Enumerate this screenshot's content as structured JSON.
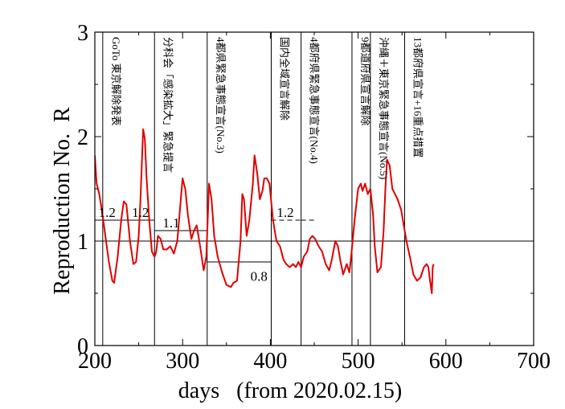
{
  "chart_data": {
    "type": "line",
    "title": "",
    "xlabel": "days   (from 2020.02.15)",
    "ylabel": "Reproduction No.  R",
    "xlim": [
      200,
      700
    ],
    "ylim": [
      0,
      3
    ],
    "x_ticks": [
      "200",
      "300",
      "400",
      "500",
      "600",
      "700"
    ],
    "y_ticks": [
      "0",
      "1",
      "2",
      "3"
    ],
    "x_tick_values": [
      200,
      300,
      400,
      500,
      600,
      700
    ],
    "y_tick_values": [
      0,
      1,
      2,
      3
    ],
    "grid": false,
    "series": [
      {
        "color": "#e00000",
        "points": [
          [
            200,
            1.82
          ],
          [
            202,
            1.55
          ],
          [
            205,
            1.45
          ],
          [
            208,
            1.3
          ],
          [
            212,
            1.05
          ],
          [
            216,
            0.8
          ],
          [
            220,
            0.62
          ],
          [
            222,
            0.6
          ],
          [
            226,
            0.85
          ],
          [
            230,
            1.2
          ],
          [
            233,
            1.38
          ],
          [
            236,
            1.35
          ],
          [
            240,
            1.0
          ],
          [
            244,
            0.78
          ],
          [
            247,
            0.8
          ],
          [
            250,
            1.05
          ],
          [
            252,
            1.4
          ],
          [
            254,
            1.85
          ],
          [
            255,
            2.07
          ],
          [
            257,
            1.98
          ],
          [
            259,
            1.6
          ],
          [
            262,
            1.2
          ],
          [
            265,
            0.9
          ],
          [
            268,
            0.85
          ],
          [
            270,
            0.9
          ],
          [
            272,
            1.05
          ],
          [
            275,
            1.02
          ],
          [
            278,
            0.92
          ],
          [
            282,
            0.92
          ],
          [
            286,
            0.95
          ],
          [
            290,
            0.88
          ],
          [
            294,
            1.0
          ],
          [
            297,
            1.3
          ],
          [
            300,
            1.6
          ],
          [
            303,
            1.5
          ],
          [
            306,
            1.25
          ],
          [
            310,
            1.02
          ],
          [
            313,
            1.1
          ],
          [
            316,
            1.15
          ],
          [
            320,
            0.95
          ],
          [
            324,
            0.72
          ],
          [
            327,
            0.85
          ],
          [
            329,
            1.3
          ],
          [
            330,
            1.55
          ],
          [
            333,
            1.4
          ],
          [
            336,
            1.05
          ],
          [
            340,
            0.85
          ],
          [
            345,
            0.7
          ],
          [
            350,
            0.58
          ],
          [
            355,
            0.56
          ],
          [
            358,
            0.6
          ],
          [
            362,
            0.62
          ],
          [
            366,
            1.0
          ],
          [
            368,
            1.45
          ],
          [
            370,
            1.4
          ],
          [
            373,
            1.05
          ],
          [
            376,
            1.2
          ],
          [
            380,
            1.55
          ],
          [
            382,
            1.82
          ],
          [
            385,
            1.65
          ],
          [
            388,
            1.4
          ],
          [
            391,
            1.48
          ],
          [
            393,
            1.6
          ],
          [
            396,
            1.6
          ],
          [
            399,
            1.55
          ],
          [
            403,
            1.2
          ],
          [
            407,
            1.0
          ],
          [
            411,
            0.95
          ],
          [
            415,
            0.82
          ],
          [
            418,
            0.78
          ],
          [
            422,
            0.75
          ],
          [
            426,
            0.78
          ],
          [
            429,
            0.75
          ],
          [
            432,
            0.8
          ],
          [
            435,
            0.75
          ],
          [
            438,
            0.85
          ],
          [
            442,
            0.9
          ],
          [
            445,
            1.02
          ],
          [
            448,
            1.05
          ],
          [
            451,
            1.02
          ],
          [
            455,
            0.95
          ],
          [
            459,
            0.9
          ],
          [
            463,
            0.78
          ],
          [
            467,
            0.72
          ],
          [
            470,
            0.82
          ],
          [
            474,
            1.0
          ],
          [
            477,
            0.95
          ],
          [
            480,
            0.8
          ],
          [
            483,
            0.68
          ],
          [
            487,
            0.78
          ],
          [
            490,
            0.7
          ],
          [
            492,
            0.85
          ],
          [
            496,
            1.2
          ],
          [
            500,
            1.5
          ],
          [
            503,
            1.55
          ],
          [
            505,
            1.48
          ],
          [
            508,
            1.55
          ],
          [
            511,
            1.45
          ],
          [
            514,
            1.5
          ],
          [
            517,
            1.25
          ],
          [
            519,
            0.95
          ],
          [
            522,
            0.7
          ],
          [
            526,
            0.75
          ],
          [
            529,
            1.1
          ],
          [
            531,
            1.5
          ],
          [
            533,
            1.78
          ],
          [
            536,
            1.72
          ],
          [
            539,
            1.5
          ],
          [
            542,
            1.45
          ],
          [
            545,
            1.4
          ],
          [
            549,
            1.3
          ],
          [
            552,
            1.15
          ],
          [
            555,
            1.0
          ],
          [
            559,
            0.85
          ],
          [
            563,
            0.68
          ],
          [
            567,
            0.62
          ],
          [
            571,
            0.65
          ],
          [
            575,
            0.75
          ],
          [
            578,
            0.78
          ],
          [
            580,
            0.75
          ],
          [
            582,
            0.62
          ],
          [
            584,
            0.5
          ],
          [
            585,
            0.75
          ],
          [
            586,
            0.78
          ]
        ]
      }
    ],
    "reference_line": {
      "y": 1
    },
    "event_lines": [
      {
        "x": 209,
        "label": "GoTo 東京解除発表"
      },
      {
        "x": 268,
        "label": "分科会「感染拡大」緊急提言"
      },
      {
        "x": 328,
        "label": "4都県緊急事態宣言(No.3)"
      },
      {
        "x": 401,
        "label": "国内全域宣言解除"
      },
      {
        "x": 435,
        "label": "4都府県緊急事態宣言(No.4)"
      },
      {
        "x": 493,
        "label": "9都道府県宣言解除"
      },
      {
        "x": 514,
        "label": "沖縄＋東京緊急事態宣言(No.5)"
      },
      {
        "x": 553,
        "label": "13都府県宣言+16重点措置"
      }
    ],
    "level_segments": [
      {
        "x1": 200,
        "x2": 268,
        "y": 1.2,
        "dashed": false,
        "label": "1.2",
        "label_x": 214,
        "label_y": 1.23
      },
      {
        "x1": 200,
        "x2": 268,
        "y": 1.2,
        "dashed": false,
        "label": "1.2",
        "label_x": 252,
        "label_y": 1.23
      },
      {
        "x1": 268,
        "x2": 328,
        "y": 1.1,
        "dashed": false,
        "label": "1.1",
        "label_x": 287,
        "label_y": 1.13
      },
      {
        "x1": 328,
        "x2": 401,
        "y": 0.8,
        "dashed": false,
        "label": "0.8",
        "label_x": 387,
        "label_y": 0.62
      },
      {
        "x1": 401,
        "x2": 435,
        "y": 1.2,
        "dashed": true,
        "label": "1.2",
        "label_x": 417,
        "label_y": 1.23
      },
      {
        "x1": 435,
        "x2": 450,
        "y": 1.2,
        "dashed": true,
        "label": "",
        "label_x": 0,
        "label_y": 0
      }
    ]
  }
}
